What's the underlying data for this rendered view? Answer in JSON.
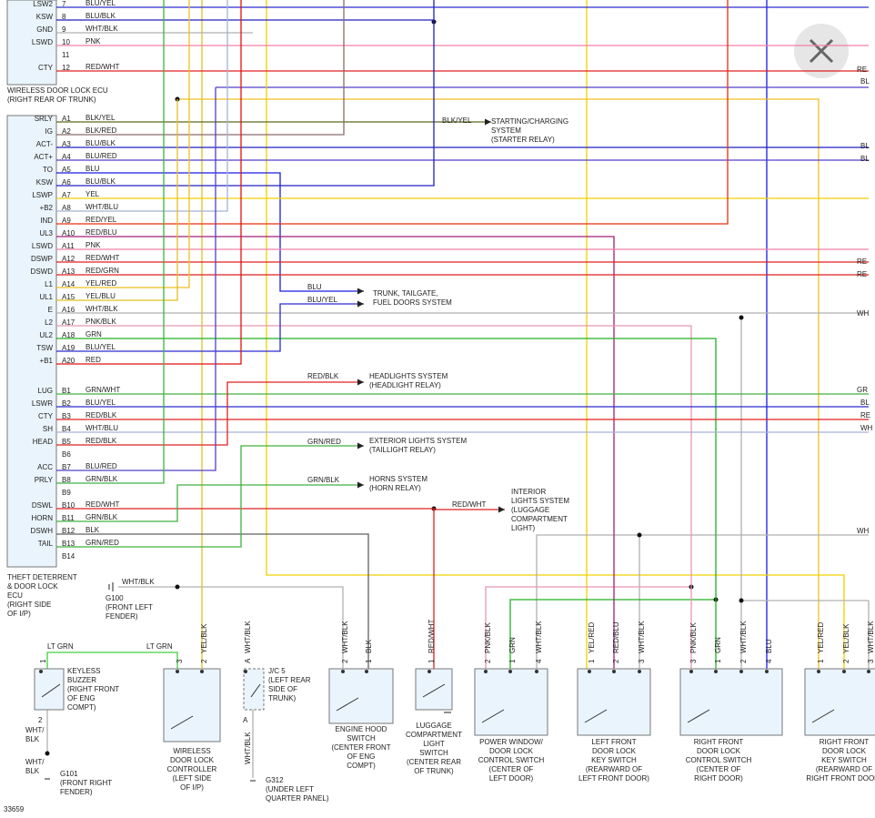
{
  "top_ecu": {
    "title": [
      "WIRELESS DOOR LOCK ECU",
      "(RIGHT REAR OF TRUNK)"
    ],
    "pins": [
      {
        "name": "LSW2",
        "pin": "7",
        "wire": "BLU/YEL",
        "color": "#2a2ad0"
      },
      {
        "name": "KSW",
        "pin": "8",
        "wire": "BLU/BLK",
        "color": "#2020c0"
      },
      {
        "name": "GND",
        "pin": "9",
        "wire": "WHT/BLK",
        "color": "#b0b0b0"
      },
      {
        "name": "LSWD",
        "pin": "10",
        "wire": "PNK",
        "color": "#f080a8"
      },
      {
        "pin": "11"
      },
      {
        "name": "CTY",
        "pin": "12",
        "wire": "RED/WHT",
        "color": "#e02020"
      }
    ]
  },
  "main_ecu": {
    "title": [
      "THEFT DETERRENT",
      "& DOOR LOCK",
      "ECU",
      "(RIGHT SIDE",
      "OF I/P)"
    ],
    "pins": [
      {
        "name": "SRLY",
        "pin": "A1",
        "wire": "BLK/YEL",
        "color": "#5b6b20"
      },
      {
        "name": "IG",
        "pin": "A2",
        "wire": "BLK/RED",
        "color": "#8a6a6a"
      },
      {
        "name": "ACT-",
        "pin": "A3",
        "wire": "BLU/BLK",
        "color": "#2020c0"
      },
      {
        "name": "ACT+",
        "pin": "A4",
        "wire": "BLU/RED",
        "color": "#5040c8"
      },
      {
        "name": "TO",
        "pin": "A5",
        "wire": "BLU",
        "color": "#1a1ae6"
      },
      {
        "name": "KSW",
        "pin": "A6",
        "wire": "BLU/BLK",
        "color": "#2020c0"
      },
      {
        "name": "LSWP",
        "pin": "A7",
        "wire": "YEL",
        "color": "#f0d000"
      },
      {
        "name": "+B2",
        "pin": "A8",
        "wire": "WHT/BLU",
        "color": "#a8b0d8"
      },
      {
        "name": "IND",
        "pin": "A9",
        "wire": "RED/YEL",
        "color": "#e83010"
      },
      {
        "name": "UL3",
        "pin": "A10",
        "wire": "RED/BLU",
        "color": "#a0207a"
      },
      {
        "name": "LSWD",
        "pin": "A11",
        "wire": "PNK",
        "color": "#f080a8"
      },
      {
        "name": "DSWP",
        "pin": "A12",
        "wire": "RED/WHT",
        "color": "#e02020"
      },
      {
        "name": "DSWD",
        "pin": "A13",
        "wire": "RED/GRN",
        "color": "#e02020"
      },
      {
        "name": "L1",
        "pin": "A14",
        "wire": "YEL/RED",
        "color": "#f0c020"
      },
      {
        "name": "UL1",
        "pin": "A15",
        "wire": "YEL/BLU",
        "color": "#e0c020"
      },
      {
        "name": "E",
        "pin": "A16",
        "wire": "WHT/BLK",
        "color": "#b0b0b0"
      },
      {
        "name": "L2",
        "pin": "A17",
        "wire": "PNK/BLK",
        "color": "#e898b0"
      },
      {
        "name": "UL2",
        "pin": "A18",
        "wire": "GRN",
        "color": "#20b020"
      },
      {
        "name": "TSW",
        "pin": "A19",
        "wire": "BLU/YEL",
        "color": "#2a2ad0"
      },
      {
        "name": "+B1",
        "pin": "A20",
        "wire": "RED",
        "color": "#e01010"
      },
      {
        "name": "LUG",
        "pin": "B1",
        "wire": "GRN/WHT",
        "color": "#40b040"
      },
      {
        "name": "LSWR",
        "pin": "B2",
        "wire": "BLU/YEL",
        "color": "#2a2ad0"
      },
      {
        "name": "CTY",
        "pin": "B3",
        "wire": "RED/BLK",
        "color": "#e02020"
      },
      {
        "name": "SH",
        "pin": "B4",
        "wire": "WHT/BLU",
        "color": "#a8b0d8"
      },
      {
        "name": "HEAD",
        "pin": "B5",
        "wire": "RED/BLK",
        "color": "#e02020"
      },
      {
        "pin": "B6"
      },
      {
        "name": "ACC",
        "pin": "B7",
        "wire": "BLU/RED",
        "color": "#5040c8"
      },
      {
        "name": "PRLY",
        "pin": "B8",
        "wire": "GRN/BLK",
        "color": "#40b040"
      },
      {
        "pin": "B9"
      },
      {
        "name": "DSWL",
        "pin": "B10",
        "wire": "RED/WHT",
        "color": "#e02020"
      },
      {
        "name": "HORN",
        "pin": "B11",
        "wire": "GRN/BLK",
        "color": "#40b040"
      },
      {
        "name": "DSWH",
        "pin": "B12",
        "wire": "BLK",
        "color": "#606060"
      },
      {
        "name": "TAIL",
        "pin": "B13",
        "wire": "GRN/RED",
        "color": "#40b040"
      },
      {
        "pin": "B14"
      }
    ]
  },
  "destinations": [
    {
      "wire": "BLK/YEL",
      "label": [
        "STARTING/CHARGING",
        "SYSTEM",
        "(STARTER RELAY)"
      ]
    },
    {
      "wire": "BLU",
      "label": [
        "TRUNK, TAILGATE,",
        "FUEL DOORS SYSTEM"
      ]
    },
    {
      "wire": "BLU/YEL"
    },
    {
      "wire": "RED/BLK",
      "label": [
        "HEADLIGHTS SYSTEM",
        "(HEADLIGHT RELAY)"
      ]
    },
    {
      "wire": "GRN/RED",
      "label": [
        "EXTERIOR LIGHTS SYSTEM",
        "(TAILLIGHT RELAY)"
      ]
    },
    {
      "wire": "GRN/BLK",
      "label": [
        "HORNS SYSTEM",
        "(HORN RELAY)"
      ]
    },
    {
      "wire": "RED/WHT",
      "label": [
        "INTERIOR",
        "LIGHTS SYSTEM",
        "(LUGGAGE",
        "COMPARTMENT",
        "LIGHT)"
      ]
    }
  ],
  "edge_labels": [
    "RE",
    "BL",
    "BL",
    "BL",
    "RE",
    "RE",
    "WH",
    "GR",
    "BL",
    "RE",
    "WH",
    "WH"
  ],
  "jumper_wire": [
    "LT GRN",
    "LT GRN"
  ],
  "grounds": [
    {
      "wire": [
        "WHT/BLK"
      ],
      "name": [
        "G100",
        "(FRONT LEFT",
        "FENDER)"
      ]
    },
    {
      "wire": [
        "WHT/",
        "BLK"
      ],
      "name": [
        "G101",
        "(FRONT RIGHT",
        "FENDER)"
      ]
    },
    {
      "name": [
        "G312",
        "(UNDER LEFT",
        "QUARTER PANEL)"
      ]
    }
  ],
  "components": [
    {
      "name": [
        "KEYLESS",
        "BUZZER",
        "(RIGHT FRONT",
        "OF ENG",
        "COMPT)"
      ],
      "pins": [
        {
          "pin": "1"
        }
      ],
      "lower": {
        "pin": "2",
        "wire": [
          "WHT/",
          "BLK"
        ]
      }
    },
    {
      "name": [
        "WIRELESS",
        "DOOR LOCK",
        "CONTROLLER",
        "(LEFT SIDE",
        "OF I/P)"
      ],
      "pins": [
        {
          "pin": "3"
        },
        {
          "pin": "2",
          "wire": "YEL/BLK"
        }
      ]
    },
    {
      "name": [
        "J/C 5",
        "(LEFT REAR",
        "SIDE OF",
        "TRUNK)"
      ],
      "pins": [
        {
          "pin": "A",
          "wire": "WHT/BLK"
        }
      ],
      "lower": {
        "pin": "A",
        "wire": [
          "WHT/BLK"
        ]
      }
    },
    {
      "name": [
        "ENGINE HOOD",
        "SWITCH",
        "(CENTER FRONT",
        "OF ENG",
        "COMPT)"
      ],
      "pins": [
        {
          "pin": "2",
          "wire": "WHT/BLK"
        },
        {
          "pin": "1",
          "wire": "BLK"
        }
      ]
    },
    {
      "name": [
        "LUGGAGE",
        "COMPARTMENT",
        "LIGHT",
        "SWITCH",
        "(CENTER REAR",
        "OF TRUNK)"
      ],
      "pins": [
        {
          "pin": "1",
          "wire": "RED/WHT"
        }
      ]
    },
    {
      "name": [
        "POWER WINDOW/",
        "DOOR LOCK",
        "CONTROL SWITCH",
        "(CENTER OF",
        "LEFT DOOR)"
      ],
      "pins": [
        {
          "pin": "2",
          "wire": "PNK/BLK"
        },
        {
          "pin": "1",
          "wire": "GRN"
        },
        {
          "pin": "4",
          "wire": "WHT/BLK"
        }
      ]
    },
    {
      "name": [
        "LEFT FRONT",
        "DOOR LOCK",
        "KEY SWITCH",
        "(REARWARD OF",
        "LEFT FRONT DOOR)"
      ],
      "pins": [
        {
          "pin": "1",
          "wire": "YEL/RED"
        },
        {
          "pin": "2",
          "wire": "RED/BLU"
        },
        {
          "pin": "3",
          "wire": "WHT/BLK"
        }
      ]
    },
    {
      "name": [
        "RIGHT FRONT",
        "DOOR LOCK",
        "CONTROL SWITCH",
        "(CENTER OF",
        "RIGHT DOOR)"
      ],
      "pins": [
        {
          "pin": "3",
          "wire": "PNK/BLK"
        },
        {
          "pin": "1",
          "wire": "GRN"
        },
        {
          "pin": "2",
          "wire": "WHT/BLK"
        },
        {
          "pin": "4",
          "wire": "BLU"
        }
      ]
    },
    {
      "name": [
        "RIGHT FRONT",
        "DOOR LOCK",
        "KEY SWITCH",
        "(REARWARD OF",
        "RIGHT FRONT DOOR)"
      ],
      "pins": [
        {
          "pin": "1",
          "wire": "YEL/RED"
        },
        {
          "pin": "2",
          "wire": "YEL/BLK"
        },
        {
          "pin": "3",
          "wire": "WHT/BLK"
        }
      ]
    }
  ],
  "figure_id": "33659"
}
